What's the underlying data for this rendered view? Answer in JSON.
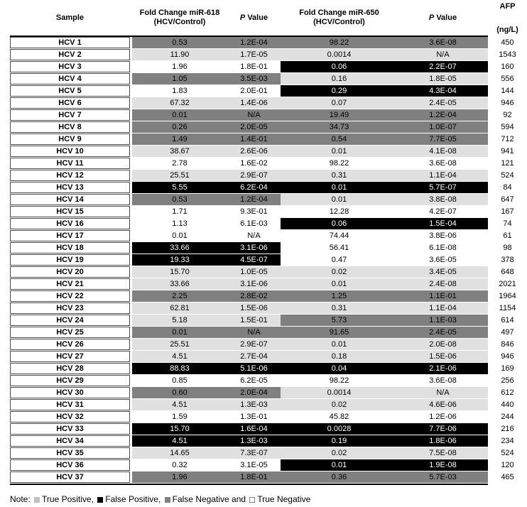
{
  "header": {
    "sample": "Sample",
    "fc618_line1": "Fold Change miR-618",
    "fc618_line2": "(HCV/Control)",
    "p_italic": "P",
    "p_rest": " Value",
    "fc650_line1": "Fold Change miR-650",
    "fc650_line2": "(HCV/Control)",
    "afp_line1": "AFP",
    "afp_line2": "(ng/L)"
  },
  "categories": {
    "tp": {
      "name": "True Positive",
      "bg": "#E0E0E0",
      "text": "#000000"
    },
    "fp": {
      "name": "False Positive",
      "bg": "#000000",
      "text": "#FFFFFF"
    },
    "fn": {
      "name": "False Negative",
      "bg": "#808080",
      "text": "#000000"
    },
    "tn": {
      "name": "True Negative",
      "bg": "#FFFFFF",
      "text": "#000000"
    }
  },
  "table": {
    "rows": [
      {
        "sample": "HCV 1",
        "fc618": "0.53",
        "p618": "1.2E-04",
        "c1": "fn",
        "fc650": "98.22",
        "p650": "3.6E-08",
        "c2": "fn",
        "afp": "450"
      },
      {
        "sample": "HCV 2",
        "fc618": "11.90",
        "p618": "1.7E-05",
        "c1": "tp",
        "fc650": "0.0014",
        "p650": "N/A",
        "c2": "tp",
        "afp": "1543"
      },
      {
        "sample": "HCV 3",
        "fc618": "1.96",
        "p618": "1.8E-01",
        "c1": "tn",
        "fc650": "0.06",
        "p650": "2.2E-07",
        "c2": "fp",
        "afp": "160"
      },
      {
        "sample": "HCV 4",
        "fc618": "1.05",
        "p618": "3.5E-03",
        "c1": "fn",
        "fc650": "0.16",
        "p650": "1.8E-05",
        "c2": "tp",
        "afp": "556"
      },
      {
        "sample": "HCV 5",
        "fc618": "1.83",
        "p618": "2.0E-01",
        "c1": "tn",
        "fc650": "0.29",
        "p650": "4.3E-04",
        "c2": "fp",
        "afp": "144"
      },
      {
        "sample": "HCV 6",
        "fc618": "67.32",
        "p618": "1.4E-06",
        "c1": "tp",
        "fc650": "0.07",
        "p650": "2.4E-05",
        "c2": "tp",
        "afp": "946"
      },
      {
        "sample": "HCV 7",
        "fc618": "0.01",
        "p618": "N/A",
        "c1": "fn",
        "fc650": "19.49",
        "p650": "1.2E-04",
        "c2": "fn",
        "afp": "92"
      },
      {
        "sample": "HCV 8",
        "fc618": "0.26",
        "p618": "2.0E-05",
        "c1": "fn",
        "fc650": "34.73",
        "p650": "1.0E-07",
        "c2": "fn",
        "afp": "594"
      },
      {
        "sample": "HCV 9",
        "fc618": "1.49",
        "p618": "1.4E-01",
        "c1": "fn",
        "fc650": "0.54",
        "p650": "7.7E-05",
        "c2": "fn",
        "afp": "712"
      },
      {
        "sample": "HCV 10",
        "fc618": "38.67",
        "p618": "2.6E-06",
        "c1": "tp",
        "fc650": "0.01",
        "p650": "4.1E-08",
        "c2": "tp",
        "afp": "941"
      },
      {
        "sample": "HCV 11",
        "fc618": "2.78",
        "p618": "1.6E-02",
        "c1": "tn",
        "fc650": "98.22",
        "p650": "3.6E-08",
        "c2": "tn",
        "afp": "121"
      },
      {
        "sample": "HCV 12",
        "fc618": "25.51",
        "p618": "2.9E-07",
        "c1": "tp",
        "fc650": "0.31",
        "p650": "1.1E-04",
        "c2": "tp",
        "afp": "524"
      },
      {
        "sample": "HCV 13",
        "fc618": "5.55",
        "p618": "6.2E-04",
        "c1": "fp",
        "fc650": "0.01",
        "p650": "5.7E-07",
        "c2": "fp",
        "afp": "84"
      },
      {
        "sample": "HCV 14",
        "fc618": "0.53",
        "p618": "1.2E-04",
        "c1": "fn",
        "fc650": "0.01",
        "p650": "3.8E-08",
        "c2": "tp",
        "afp": "647"
      },
      {
        "sample": "HCV 15",
        "fc618": "1.71",
        "p618": "9.3E-01",
        "c1": "tn",
        "fc650": "12.28",
        "p650": "4.2E-07",
        "c2": "tn",
        "afp": "167"
      },
      {
        "sample": "HCV 16",
        "fc618": "1.13",
        "p618": "6.1E-03",
        "c1": "tn",
        "fc650": "0.06",
        "p650": "1.5E-04",
        "c2": "fp",
        "afp": "74"
      },
      {
        "sample": "HCV 17",
        "fc618": "0.01",
        "p618": "N/A",
        "c1": "tn",
        "fc650": "74.44",
        "p650": "3.8E-06",
        "c2": "tn",
        "afp": "61"
      },
      {
        "sample": "HCV 18",
        "fc618": "33.66",
        "p618": "3.1E-06",
        "c1": "fp",
        "fc650": "56.41",
        "p650": "6.1E-08",
        "c2": "tn",
        "afp": "98"
      },
      {
        "sample": "HCV 19",
        "fc618": "19.33",
        "p618": "4.5E-07",
        "c1": "fp",
        "fc650": "0.47",
        "p650": "3.6E-05",
        "c2": "tn",
        "afp": "378"
      },
      {
        "sample": "HCV 20",
        "fc618": "15.70",
        "p618": "1.0E-05",
        "c1": "tp",
        "fc650": "0.02",
        "p650": "3.4E-05",
        "c2": "tp",
        "afp": "648"
      },
      {
        "sample": "HCV 21",
        "fc618": "33.66",
        "p618": "3.1E-06",
        "c1": "tp",
        "fc650": "0.01",
        "p650": "2.4E-08",
        "c2": "tp",
        "afp": "2021"
      },
      {
        "sample": "HCV 22",
        "fc618": "2.25",
        "p618": "2.8E-02",
        "c1": "fn",
        "fc650": "1.25",
        "p650": "1.1E-01",
        "c2": "fn",
        "afp": "1964"
      },
      {
        "sample": "HCV 23",
        "fc618": "62.81",
        "p618": "1.5E-06",
        "c1": "tp",
        "fc650": "0.31",
        "p650": "1.1E-04",
        "c2": "tp",
        "afp": "1154"
      },
      {
        "sample": "HCV 24",
        "fc618": "5.18",
        "p618": "1.5E-01",
        "c1": "tp",
        "fc650": "5.73",
        "p650": "1.1E-03",
        "c2": "fn",
        "afp": "614"
      },
      {
        "sample": "HCV 25",
        "fc618": "0.01",
        "p618": "N/A",
        "c1": "fn",
        "fc650": "91.65",
        "p650": "2.4E-05",
        "c2": "fn",
        "afp": "497"
      },
      {
        "sample": "HCV 26",
        "fc618": "25.51",
        "p618": "2.9E-07",
        "c1": "tp",
        "fc650": "0.01",
        "p650": "2.0E-08",
        "c2": "tp",
        "afp": "846"
      },
      {
        "sample": "HCV 27",
        "fc618": "4.51",
        "p618": "2.7E-04",
        "c1": "tp",
        "fc650": "0.18",
        "p650": "1.5E-06",
        "c2": "tp",
        "afp": "946"
      },
      {
        "sample": "HCV 28",
        "fc618": "88.83",
        "p618": "5.1E-06",
        "c1": "fp",
        "fc650": "0.04",
        "p650": "2.1E-06",
        "c2": "fp",
        "afp": "169"
      },
      {
        "sample": "HCV 29",
        "fc618": "0.85",
        "p618": "6.2E-05",
        "c1": "tn",
        "fc650": "98.22",
        "p650": "3.6E-08",
        "c2": "tn",
        "afp": "256"
      },
      {
        "sample": "HCV 30",
        "fc618": "0.60",
        "p618": "2.0E-04",
        "c1": "fn",
        "fc650": "0.0014",
        "p650": "N/A",
        "c2": "tp",
        "afp": "612"
      },
      {
        "sample": "HCV 31",
        "fc618": "4.51",
        "p618": "1.3E-03",
        "c1": "tp",
        "fc650": "0.02",
        "p650": "4.6E-06",
        "c2": "tp",
        "afp": "440"
      },
      {
        "sample": "HCV 32",
        "fc618": "1.59",
        "p618": "1.3E-01",
        "c1": "tn",
        "fc650": "45.82",
        "p650": "1.2E-06",
        "c2": "tn",
        "afp": "244"
      },
      {
        "sample": "HCV 33",
        "fc618": "15.70",
        "p618": "1.6E-04",
        "c1": "fp",
        "fc650": "0.0028",
        "p650": "7.7E-06",
        "c2": "fp",
        "afp": "216"
      },
      {
        "sample": "HCV 34",
        "fc618": "4.51",
        "p618": "1.3E-03",
        "c1": "fp",
        "fc650": "0.19",
        "p650": "1.8E-06",
        "c2": "fp",
        "afp": "234"
      },
      {
        "sample": "HCV 35",
        "fc618": "14.65",
        "p618": "7.3E-07",
        "c1": "tp",
        "fc650": "0.02",
        "p650": "7.5E-08",
        "c2": "tp",
        "afp": "524"
      },
      {
        "sample": "HCV 36",
        "fc618": "0.32",
        "p618": "3.1E-05",
        "c1": "tn",
        "fc650": "0.01",
        "p650": "1.9E-08",
        "c2": "fp",
        "afp": "120"
      },
      {
        "sample": "HCV 37",
        "fc618": "1.96",
        "p618": "1.8E-01",
        "c1": "fn",
        "fc650": "0.36",
        "p650": "5.7E-03",
        "c2": "fn",
        "afp": "465"
      }
    ]
  },
  "note": {
    "prefix": "Note: ",
    "items": [
      {
        "category": "tp",
        "label": "True Positive",
        "sep": ", ",
        "marker_color": "#BFBFBF",
        "marker_border": "#BFBFBF"
      },
      {
        "category": "fp",
        "label": "False Positive",
        "sep": ", ",
        "marker_color": "#000000",
        "marker_border": "#000000"
      },
      {
        "category": "fn",
        "label": "False Negative",
        "sep": " and ",
        "marker_color": "#808080",
        "marker_border": "#808080"
      },
      {
        "category": "tn",
        "label": "True Negative",
        "sep": "",
        "marker_color": "#FFFFFF",
        "marker_border": "#808080"
      }
    ]
  }
}
